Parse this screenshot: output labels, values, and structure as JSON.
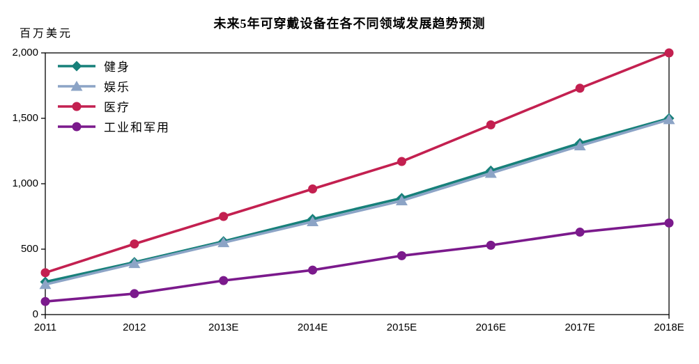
{
  "title": "未来5年可穿戴设备在各不同领域发展趋势预测",
  "y_axis": {
    "unit_label": "百万美元",
    "tick_labels": [
      "2,000",
      "1,500",
      "1,000",
      "500",
      "0"
    ],
    "min": 0,
    "max": 2000,
    "step": 500
  },
  "x_axis": {
    "categories": [
      "2011",
      "2012",
      "2013E",
      "2014E",
      "2015E",
      "2016E",
      "2017E",
      "2018E"
    ]
  },
  "chart_data": {
    "type": "line",
    "title": "未来5年可穿戴设备在各不同领域发展趋势预测",
    "xlabel": "",
    "ylabel": "百万美元",
    "ylim": [
      0,
      2000
    ],
    "grid": false,
    "legend_position": "top-left-inside",
    "categories": [
      "2011",
      "2012",
      "2013E",
      "2014E",
      "2015E",
      "2016E",
      "2017E",
      "2018E"
    ],
    "series": [
      {
        "name": "健身",
        "color": "#17807A",
        "marker": "diamond",
        "values": [
          250,
          400,
          560,
          730,
          890,
          1100,
          1310,
          1500
        ]
      },
      {
        "name": "娱乐",
        "color": "#8CA4C6",
        "marker": "triangle",
        "values": [
          230,
          390,
          550,
          710,
          870,
          1080,
          1290,
          1490
        ]
      },
      {
        "name": "医疗",
        "color": "#C32050",
        "marker": "circle",
        "values": [
          320,
          540,
          750,
          960,
          1170,
          1450,
          1730,
          2000
        ]
      },
      {
        "name": "工业和军用",
        "color": "#7B1A8C",
        "marker": "circle",
        "values": [
          100,
          160,
          260,
          340,
          450,
          530,
          630,
          700
        ]
      }
    ]
  },
  "colors": {
    "axis": "#000000",
    "text": "#000000",
    "background": "#ffffff"
  }
}
